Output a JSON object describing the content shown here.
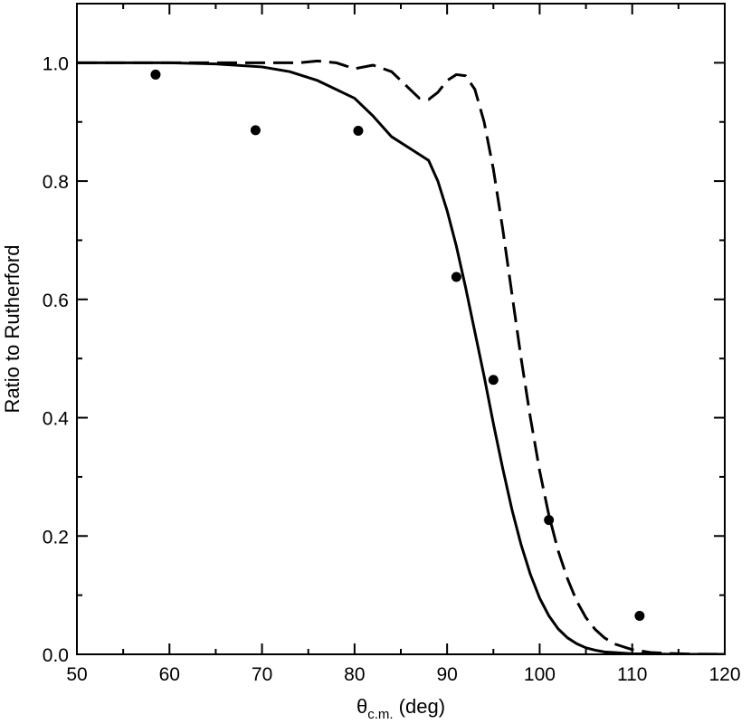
{
  "chart_data": {
    "type": "line",
    "xlabel": {
      "symbol": "θ",
      "subscript": "c.m.",
      "suffix": " (deg)"
    },
    "ylabel": "Ratio to Rutherford",
    "xlim": [
      50,
      120
    ],
    "ylim": [
      0,
      1.1
    ],
    "x_ticks": [
      50,
      60,
      70,
      80,
      90,
      100,
      110,
      120
    ],
    "x_tick_labels": [
      "50",
      "60",
      "70",
      "80",
      "90",
      "100",
      "110",
      "120"
    ],
    "x_minor_ticks": [
      55,
      65,
      75,
      85,
      95,
      105,
      115
    ],
    "y_ticks": [
      0.0,
      0.2,
      0.4,
      0.6,
      0.8,
      1.0
    ],
    "y_tick_labels": [
      "0.0",
      "0.2",
      "0.4",
      "0.6",
      "0.8",
      "1.0"
    ],
    "y_minor_ticks": [
      0.1,
      0.3,
      0.5,
      0.7,
      0.9
    ],
    "grid": false,
    "series": [
      {
        "style": "solid",
        "x": [
          50,
          55,
          60,
          65,
          70,
          73,
          76,
          78,
          80,
          82,
          84,
          86,
          88,
          89,
          90,
          91,
          92,
          93,
          94,
          95,
          96,
          97,
          98,
          99,
          100,
          101,
          102,
          103,
          104,
          105,
          106,
          107,
          108,
          110,
          112,
          115,
          120
        ],
        "y": [
          1.0,
          1.0,
          1.0,
          0.998,
          0.993,
          0.985,
          0.97,
          0.955,
          0.94,
          0.91,
          0.875,
          0.855,
          0.835,
          0.8,
          0.75,
          0.69,
          0.62,
          0.545,
          0.47,
          0.39,
          0.315,
          0.245,
          0.185,
          0.135,
          0.095,
          0.065,
          0.043,
          0.028,
          0.018,
          0.011,
          0.007,
          0.004,
          0.003,
          0.001,
          0.0005,
          0.0,
          0.0
        ]
      },
      {
        "style": "dashed",
        "x": [
          50,
          60,
          70,
          74,
          76,
          78,
          80,
          82,
          84,
          86,
          87,
          88,
          89,
          90,
          91,
          92,
          93,
          94,
          95,
          96,
          97,
          98,
          99,
          100,
          101,
          102,
          103,
          104,
          105,
          106,
          107,
          108,
          110,
          112,
          114,
          116,
          120
        ],
        "y": [
          1.0,
          1.0,
          1.0,
          1.0,
          1.003,
          1.0,
          0.99,
          0.996,
          0.985,
          0.955,
          0.94,
          0.938,
          0.95,
          0.97,
          0.98,
          0.978,
          0.955,
          0.9,
          0.82,
          0.72,
          0.61,
          0.5,
          0.4,
          0.31,
          0.235,
          0.175,
          0.128,
          0.09,
          0.062,
          0.042,
          0.028,
          0.018,
          0.008,
          0.003,
          0.0015,
          0.0005,
          0.0
        ]
      },
      {
        "style": "points",
        "x": [
          58.5,
          69.3,
          80.4,
          91.0,
          95.0,
          101.0,
          110.8
        ],
        "y": [
          0.98,
          0.886,
          0.885,
          0.638,
          0.464,
          0.227,
          0.065
        ]
      }
    ]
  }
}
